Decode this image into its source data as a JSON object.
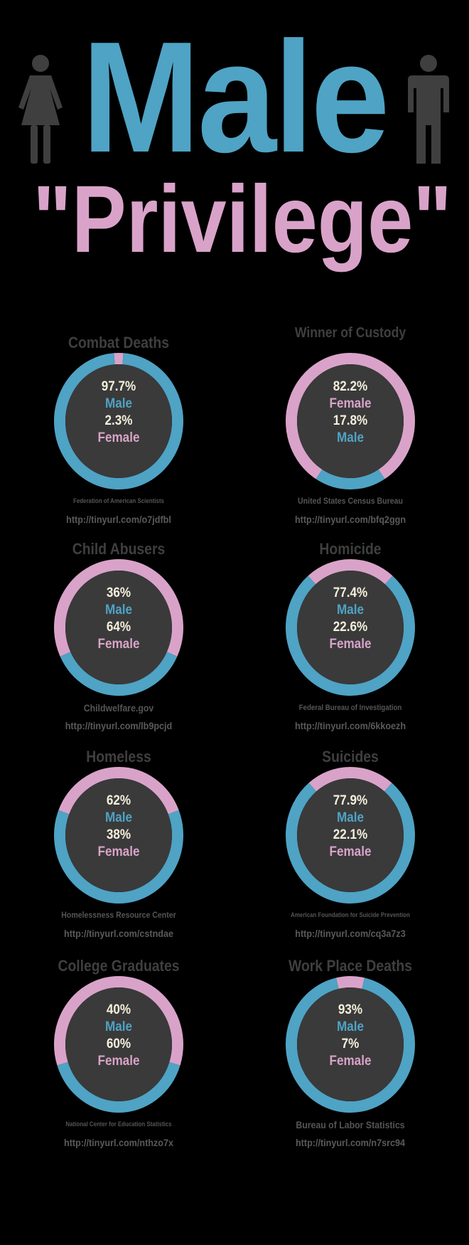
{
  "header": {
    "title": "Male",
    "subtitle": "\"Privilege\"",
    "female_icon": "female-figure-icon",
    "male_icon": "male-figure-icon"
  },
  "colors": {
    "male": "#4fa3c4",
    "female": "#d9a3c9",
    "background": "#000000",
    "inner": "#3a3a3a",
    "title_gray": "#3f3f3f"
  },
  "chart_data": [
    {
      "type": "pie",
      "title": "Combat Deaths",
      "categories": [
        "Male",
        "Female"
      ],
      "values": [
        97.7,
        2.3
      ],
      "labels": [
        "97.7%",
        "2.3%"
      ],
      "order": [
        "Male",
        "Female"
      ],
      "source": "Federation of American Scientists",
      "url": "http://tinyurl.com/o7jdfbl"
    },
    {
      "type": "pie",
      "title": "Winner of Custody",
      "categories": [
        "Male",
        "Female"
      ],
      "values": [
        17.8,
        82.2
      ],
      "labels": [
        "17.8%",
        "82.2%"
      ],
      "order": [
        "Female",
        "Male"
      ],
      "source": "United States Census Bureau",
      "url": "http://tinyurl.com/bfq2ggn"
    },
    {
      "type": "pie",
      "title": "Child Abusers",
      "categories": [
        "Male",
        "Female"
      ],
      "values": [
        36,
        64
      ],
      "labels": [
        "36%",
        "64%"
      ],
      "order": [
        "Male",
        "Female"
      ],
      "source": "Childwelfare.gov",
      "url": "http://tinyurl.com/lb9pcjd"
    },
    {
      "type": "pie",
      "title": "Homicide",
      "categories": [
        "Male",
        "Female"
      ],
      "values": [
        77.4,
        22.6
      ],
      "labels": [
        "77.4%",
        "22.6%"
      ],
      "order": [
        "Male",
        "Female"
      ],
      "source": "Federal Bureau of Investigation",
      "url": "http://tinyurl.com/6kkoezh"
    },
    {
      "type": "pie",
      "title": "Homeless",
      "categories": [
        "Male",
        "Female"
      ],
      "values": [
        62,
        38
      ],
      "labels": [
        "62%",
        "38%"
      ],
      "order": [
        "Male",
        "Female"
      ],
      "source": "Homelessness Resource Center",
      "url": "http://tinyurl.com/cstndae"
    },
    {
      "type": "pie",
      "title": "Suicides",
      "categories": [
        "Male",
        "Female"
      ],
      "values": [
        77.9,
        22.1
      ],
      "labels": [
        "77.9%",
        "22.1%"
      ],
      "order": [
        "Male",
        "Female"
      ],
      "source": "American Foundation for Suicide Prevention",
      "url": "http://tinyurl.com/cq3a7z3"
    },
    {
      "type": "pie",
      "title": "College Graduates",
      "categories": [
        "Male",
        "Female"
      ],
      "values": [
        40,
        60
      ],
      "labels": [
        "40%",
        "60%"
      ],
      "order": [
        "Male",
        "Female"
      ],
      "source": "National Center for Education Statistics",
      "url": "http://tinyurl.com/nthzo7x"
    },
    {
      "type": "pie",
      "title": "Work Place Deaths",
      "categories": [
        "Male",
        "Female"
      ],
      "values": [
        93,
        7
      ],
      "labels": [
        "93%",
        "7%"
      ],
      "order": [
        "Male",
        "Female"
      ],
      "source": "Bureau of Labor Statistics",
      "url": "http://tinyurl.com/n7src94"
    }
  ]
}
